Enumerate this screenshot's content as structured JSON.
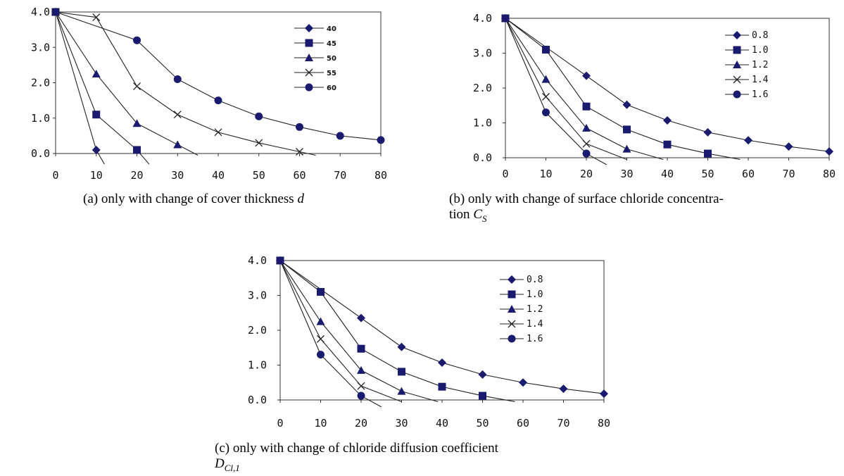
{
  "captions": {
    "a": "(a)  only with change of cover thickness",
    "a_var": "d",
    "b_line1": "(b)  only with change of surface chloride concentra-",
    "b_line2": "tion",
    "b_var": "C",
    "b_sub": "S",
    "c_line1": "(c)  only with change of chloride diffusion coefficient",
    "c_var": "D",
    "c_sub": "Cl,1"
  },
  "chart_data": [
    {
      "id": "a",
      "type": "line",
      "x": [
        0,
        10,
        20,
        30,
        40,
        50,
        60,
        70,
        80
      ],
      "xticks": [
        "0",
        "10",
        "20",
        "30",
        "40",
        "50",
        "60",
        "70",
        "80"
      ],
      "yticks": [
        "0.0",
        "1.0",
        "2.0",
        "3.0",
        "4.0"
      ],
      "xlim": [
        0,
        80
      ],
      "ylim": [
        0,
        4
      ],
      "grid": false,
      "legend": "top-right",
      "series": [
        {
          "name": "40",
          "marker": "diamond",
          "points": [
            [
              0,
              4.0
            ],
            [
              10,
              0.1
            ]
          ],
          "tail": [
            12,
            -0.3
          ]
        },
        {
          "name": "45",
          "marker": "square",
          "points": [
            [
              0,
              4.0
            ],
            [
              10,
              1.1
            ],
            [
              20,
              0.1
            ]
          ],
          "tail": [
            23,
            -0.3
          ]
        },
        {
          "name": "50",
          "marker": "triangle",
          "points": [
            [
              0,
              4.0
            ],
            [
              10,
              2.25
            ],
            [
              20,
              0.85
            ],
            [
              30,
              0.25
            ]
          ],
          "tail": [
            35,
            -0.05
          ]
        },
        {
          "name": "55",
          "marker": "x",
          "points": [
            [
              0,
              4.0
            ],
            [
              10,
              3.85
            ],
            [
              20,
              1.9
            ],
            [
              30,
              1.1
            ],
            [
              40,
              0.6
            ],
            [
              50,
              0.3
            ],
            [
              60,
              0.05
            ]
          ],
          "tail": [
            64,
            -0.05
          ]
        },
        {
          "name": "60",
          "marker": "circle",
          "points": [
            [
              0,
              4.0
            ],
            [
              20,
              3.2
            ],
            [
              30,
              2.1
            ],
            [
              40,
              1.5
            ],
            [
              50,
              1.05
            ],
            [
              60,
              0.75
            ],
            [
              70,
              0.5
            ],
            [
              80,
              0.38
            ]
          ]
        }
      ]
    },
    {
      "id": "b",
      "type": "line",
      "x": [
        0,
        10,
        20,
        30,
        40,
        50,
        60,
        70,
        80
      ],
      "xticks": [
        "0",
        "10",
        "20",
        "30",
        "40",
        "50",
        "60",
        "70",
        "80"
      ],
      "yticks": [
        "0.0",
        "1.0",
        "2.0",
        "3.0",
        "4.0"
      ],
      "xlim": [
        0,
        80
      ],
      "ylim": [
        0,
        4
      ],
      "grid": false,
      "legend": "top-right",
      "series": [
        {
          "name": "0.8",
          "marker": "diamond",
          "points": [
            [
              0,
              4.0
            ],
            [
              20,
              2.35
            ],
            [
              30,
              1.52
            ],
            [
              40,
              1.07
            ],
            [
              50,
              0.73
            ],
            [
              60,
              0.5
            ],
            [
              70,
              0.32
            ],
            [
              80,
              0.18
            ]
          ]
        },
        {
          "name": "1.0",
          "marker": "square",
          "points": [
            [
              0,
              4.0
            ],
            [
              10,
              3.1
            ],
            [
              20,
              1.47
            ],
            [
              30,
              0.81
            ],
            [
              40,
              0.38
            ],
            [
              50,
              0.12
            ]
          ],
          "tail": [
            58,
            -0.05
          ]
        },
        {
          "name": "1.2",
          "marker": "triangle",
          "points": [
            [
              0,
              4.0
            ],
            [
              10,
              2.25
            ],
            [
              20,
              0.85
            ],
            [
              30,
              0.25
            ]
          ],
          "tail": [
            39,
            -0.05
          ]
        },
        {
          "name": "1.4",
          "marker": "x",
          "points": [
            [
              0,
              4.0
            ],
            [
              10,
              1.75
            ],
            [
              20,
              0.4
            ]
          ],
          "tail": [
            30,
            -0.05
          ]
        },
        {
          "name": "1.6",
          "marker": "circle",
          "points": [
            [
              0,
              4.0
            ],
            [
              10,
              1.3
            ],
            [
              20,
              0.12
            ]
          ],
          "tail": [
            25,
            -0.2
          ]
        }
      ]
    },
    {
      "id": "c",
      "type": "line",
      "x": [
        0,
        10,
        20,
        30,
        40,
        50,
        60,
        70,
        80
      ],
      "xticks": [
        "0",
        "10",
        "20",
        "30",
        "40",
        "50",
        "60",
        "70",
        "80"
      ],
      "yticks": [
        "0.0",
        "1.0",
        "2.0",
        "3.0",
        "4.0"
      ],
      "xlim": [
        0,
        80
      ],
      "ylim": [
        0,
        4
      ],
      "grid": false,
      "legend": "top-right",
      "series": [
        {
          "name": "0.8",
          "marker": "diamond",
          "points": [
            [
              0,
              4.0
            ],
            [
              20,
              2.35
            ],
            [
              30,
              1.52
            ],
            [
              40,
              1.07
            ],
            [
              50,
              0.73
            ],
            [
              60,
              0.5
            ],
            [
              70,
              0.32
            ],
            [
              80,
              0.18
            ]
          ]
        },
        {
          "name": "1.0",
          "marker": "square",
          "points": [
            [
              0,
              4.0
            ],
            [
              10,
              3.1
            ],
            [
              20,
              1.47
            ],
            [
              30,
              0.81
            ],
            [
              40,
              0.38
            ],
            [
              50,
              0.12
            ]
          ],
          "tail": [
            58,
            -0.05
          ]
        },
        {
          "name": "1.2",
          "marker": "triangle",
          "points": [
            [
              0,
              4.0
            ],
            [
              10,
              2.25
            ],
            [
              20,
              0.85
            ],
            [
              30,
              0.25
            ]
          ],
          "tail": [
            39,
            -0.05
          ]
        },
        {
          "name": "1.4",
          "marker": "x",
          "points": [
            [
              0,
              4.0
            ],
            [
              10,
              1.75
            ],
            [
              20,
              0.4
            ]
          ],
          "tail": [
            30,
            -0.05
          ]
        },
        {
          "name": "1.6",
          "marker": "circle",
          "points": [
            [
              0,
              4.0
            ],
            [
              10,
              1.3
            ],
            [
              20,
              0.12
            ]
          ],
          "tail": [
            25,
            -0.2
          ]
        }
      ]
    }
  ]
}
